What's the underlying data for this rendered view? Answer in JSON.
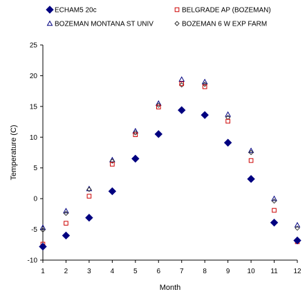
{
  "chart_data": {
    "type": "scatter",
    "title": "",
    "xlabel": "Month",
    "ylabel": "Temperature (C)",
    "xlim": [
      1,
      12
    ],
    "ylim": [
      -10,
      25
    ],
    "x_ticks": [
      1,
      2,
      3,
      4,
      5,
      6,
      7,
      8,
      9,
      10,
      11,
      12
    ],
    "y_ticks": [
      -10,
      -5,
      0,
      5,
      10,
      15,
      20,
      25
    ],
    "grid": false,
    "legend_position": "top",
    "x": [
      1,
      2,
      3,
      4,
      5,
      6,
      7,
      8,
      9,
      10,
      11,
      12
    ],
    "series": [
      {
        "name": "ECHAM5 20c",
        "marker": "diamond-filled",
        "color": "#000080",
        "values": [
          -7.8,
          -6.0,
          -3.1,
          1.2,
          6.5,
          10.5,
          14.4,
          13.6,
          9.1,
          3.2,
          -3.9,
          -6.8
        ]
      },
      {
        "name": "BELGRADE AP (BOZEMAN)",
        "marker": "square-open",
        "color": "#cc0000",
        "values": [
          -7.4,
          -4.0,
          0.4,
          5.6,
          10.4,
          14.9,
          18.7,
          18.2,
          12.6,
          6.2,
          -1.9,
          -7.0
        ]
      },
      {
        "name": "BOZEMAN MONTANA ST UNIV",
        "marker": "triangle-open",
        "color": "#000080",
        "values": [
          -4.7,
          -2.0,
          1.6,
          6.3,
          11.0,
          15.5,
          19.4,
          19.0,
          13.7,
          7.8,
          0.0,
          -4.3
        ]
      },
      {
        "name": "BOZEMAN 6 W EXP FARM",
        "marker": "diamond-open",
        "color": "#333333",
        "values": [
          -5.1,
          -2.4,
          1.5,
          6.1,
          10.7,
          15.2,
          18.5,
          18.6,
          13.2,
          7.5,
          -0.4,
          -4.8
        ]
      }
    ]
  }
}
